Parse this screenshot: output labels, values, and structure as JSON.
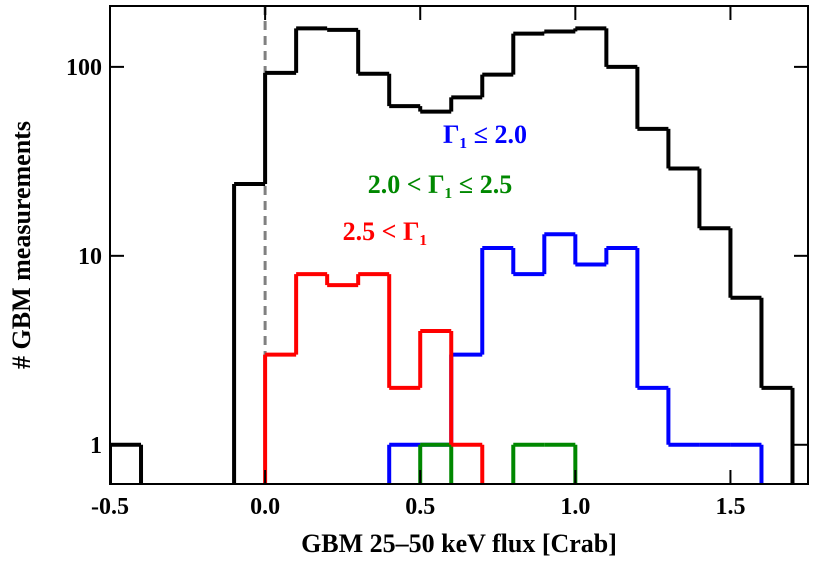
{
  "chart_data": {
    "type": "histogram",
    "xlabel": "GBM 25–50 keV flux [Crab]",
    "ylabel": "# GBM measurements",
    "xlim": [
      -0.5,
      1.75
    ],
    "ylim": [
      0.62,
      210
    ],
    "log_y": true,
    "xticks": [
      -0.5,
      {
        "value": 0,
        "label": "0.0"
      },
      0.5,
      {
        "value": 1,
        "label": "1.0"
      },
      1.5
    ],
    "yticks": [
      1,
      10,
      100
    ],
    "vline": {
      "x": 0,
      "color": "#808080"
    },
    "series": [
      {
        "color": "#000000",
        "bins": [
          -0.5,
          -0.4,
          -0.3,
          -0.2,
          -0.1,
          0,
          0.1,
          0.2,
          0.3,
          0.4,
          0.5,
          0.6,
          0.7,
          0.8,
          0.9,
          1.0,
          1.1,
          1.2,
          1.3,
          1.4,
          1.5,
          1.6,
          1.7
        ],
        "values": [
          1,
          0,
          0,
          0,
          24,
          93,
          160,
          157,
          92,
          62,
          58,
          69,
          91,
          150,
          154,
          160,
          100,
          47,
          29,
          14,
          6,
          2
        ]
      },
      {
        "name": "Γ₁ ≤ 2.0",
        "color": "#0000ff",
        "bins": [
          0.4,
          0.5,
          0.6,
          0.7,
          0.8,
          0.9,
          1.0,
          1.1,
          1.2,
          1.3,
          1.4,
          1.5,
          1.6
        ],
        "values": [
          1,
          1,
          3,
          11,
          8,
          13,
          9,
          11,
          2,
          1,
          1,
          1
        ]
      },
      {
        "name": "2.0 < Γ₁ ≤ 2.5",
        "color": "#008800",
        "bins": [
          0.5,
          0.6,
          0.7,
          0.8,
          0.9,
          1.0
        ],
        "values": [
          1,
          0,
          0,
          1,
          1
        ]
      },
      {
        "name": "2.5 < Γ₁",
        "color": "#ff0000",
        "bins": [
          0,
          0.1,
          0.2,
          0.3,
          0.4,
          0.5,
          0.6,
          0.7
        ],
        "values": [
          3,
          8,
          7,
          8,
          2,
          4,
          1
        ]
      }
    ]
  }
}
